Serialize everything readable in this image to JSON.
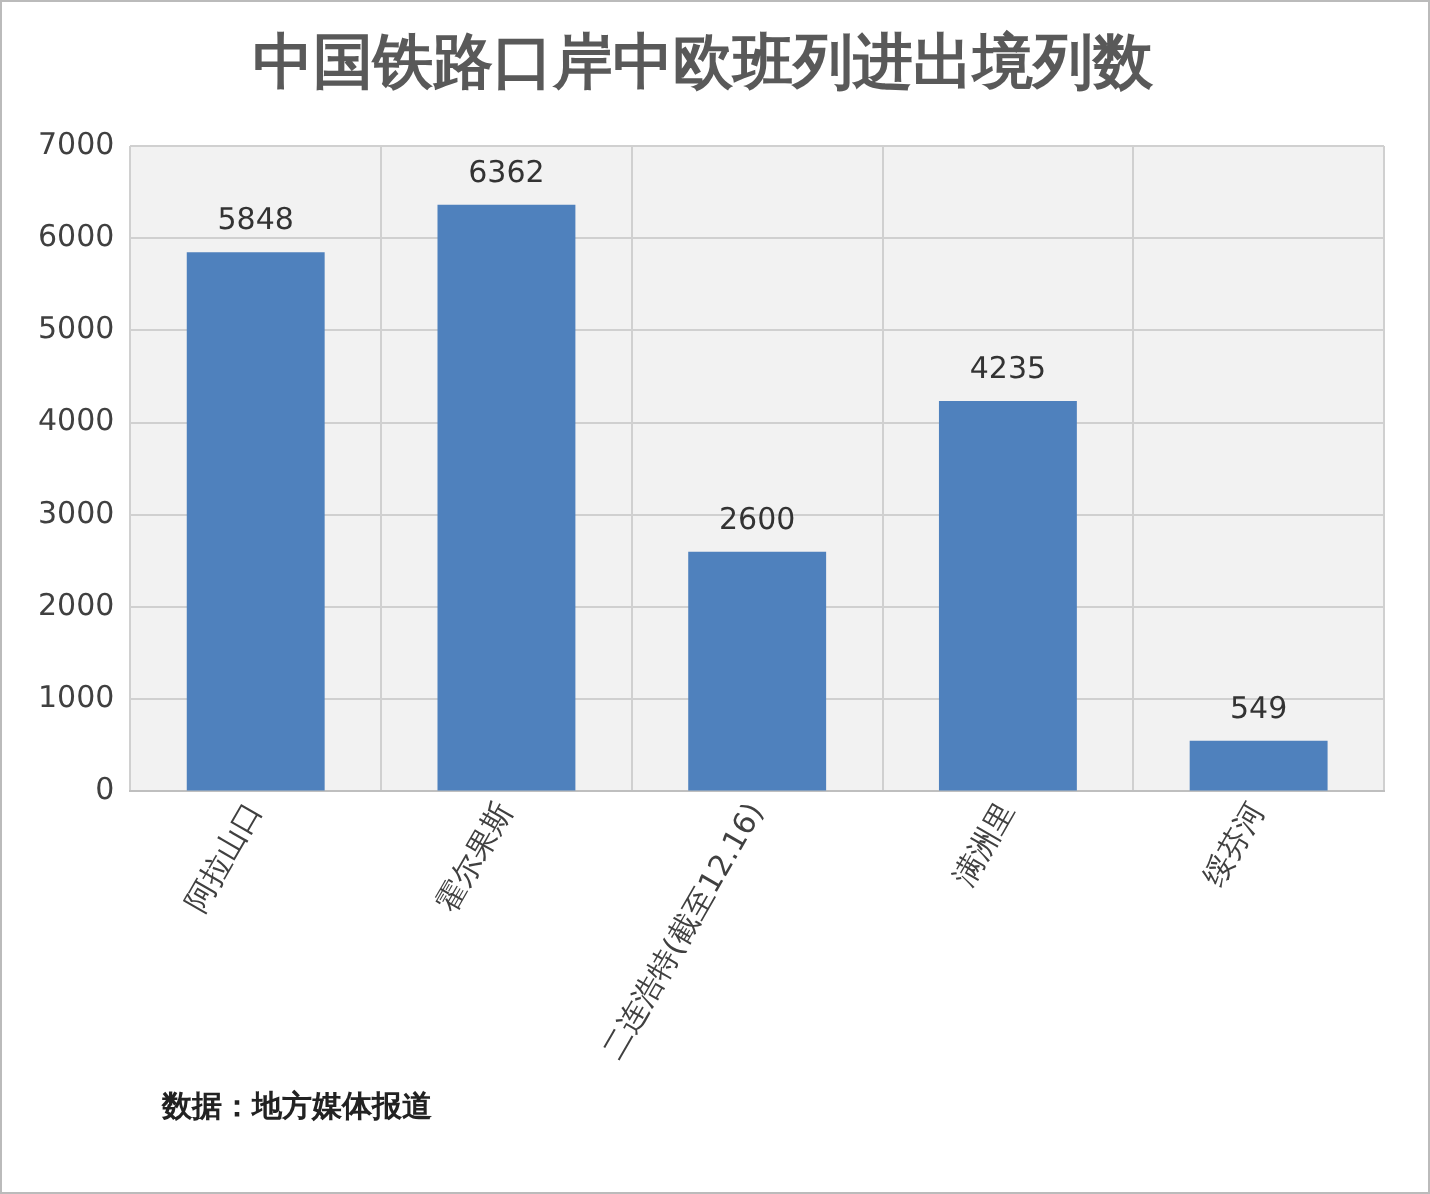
{
  "chart_data": {
    "type": "bar",
    "title": "中国铁路口岸中欧班列进出境列数",
    "categories": [
      "阿拉山口",
      "霍尔果斯",
      "二连浩特(截至12.16)",
      "满洲里",
      "绥芬河"
    ],
    "values": [
      5848,
      6362,
      2600,
      4235,
      549
    ],
    "color": "#4f81bd",
    "ylim": [
      0,
      7000
    ],
    "yticks": [
      0,
      1000,
      2000,
      3000,
      4000,
      5000,
      6000,
      7000
    ],
    "grid": true,
    "data_labels": true,
    "annotations": [
      "数据：地方媒体报道"
    ]
  }
}
